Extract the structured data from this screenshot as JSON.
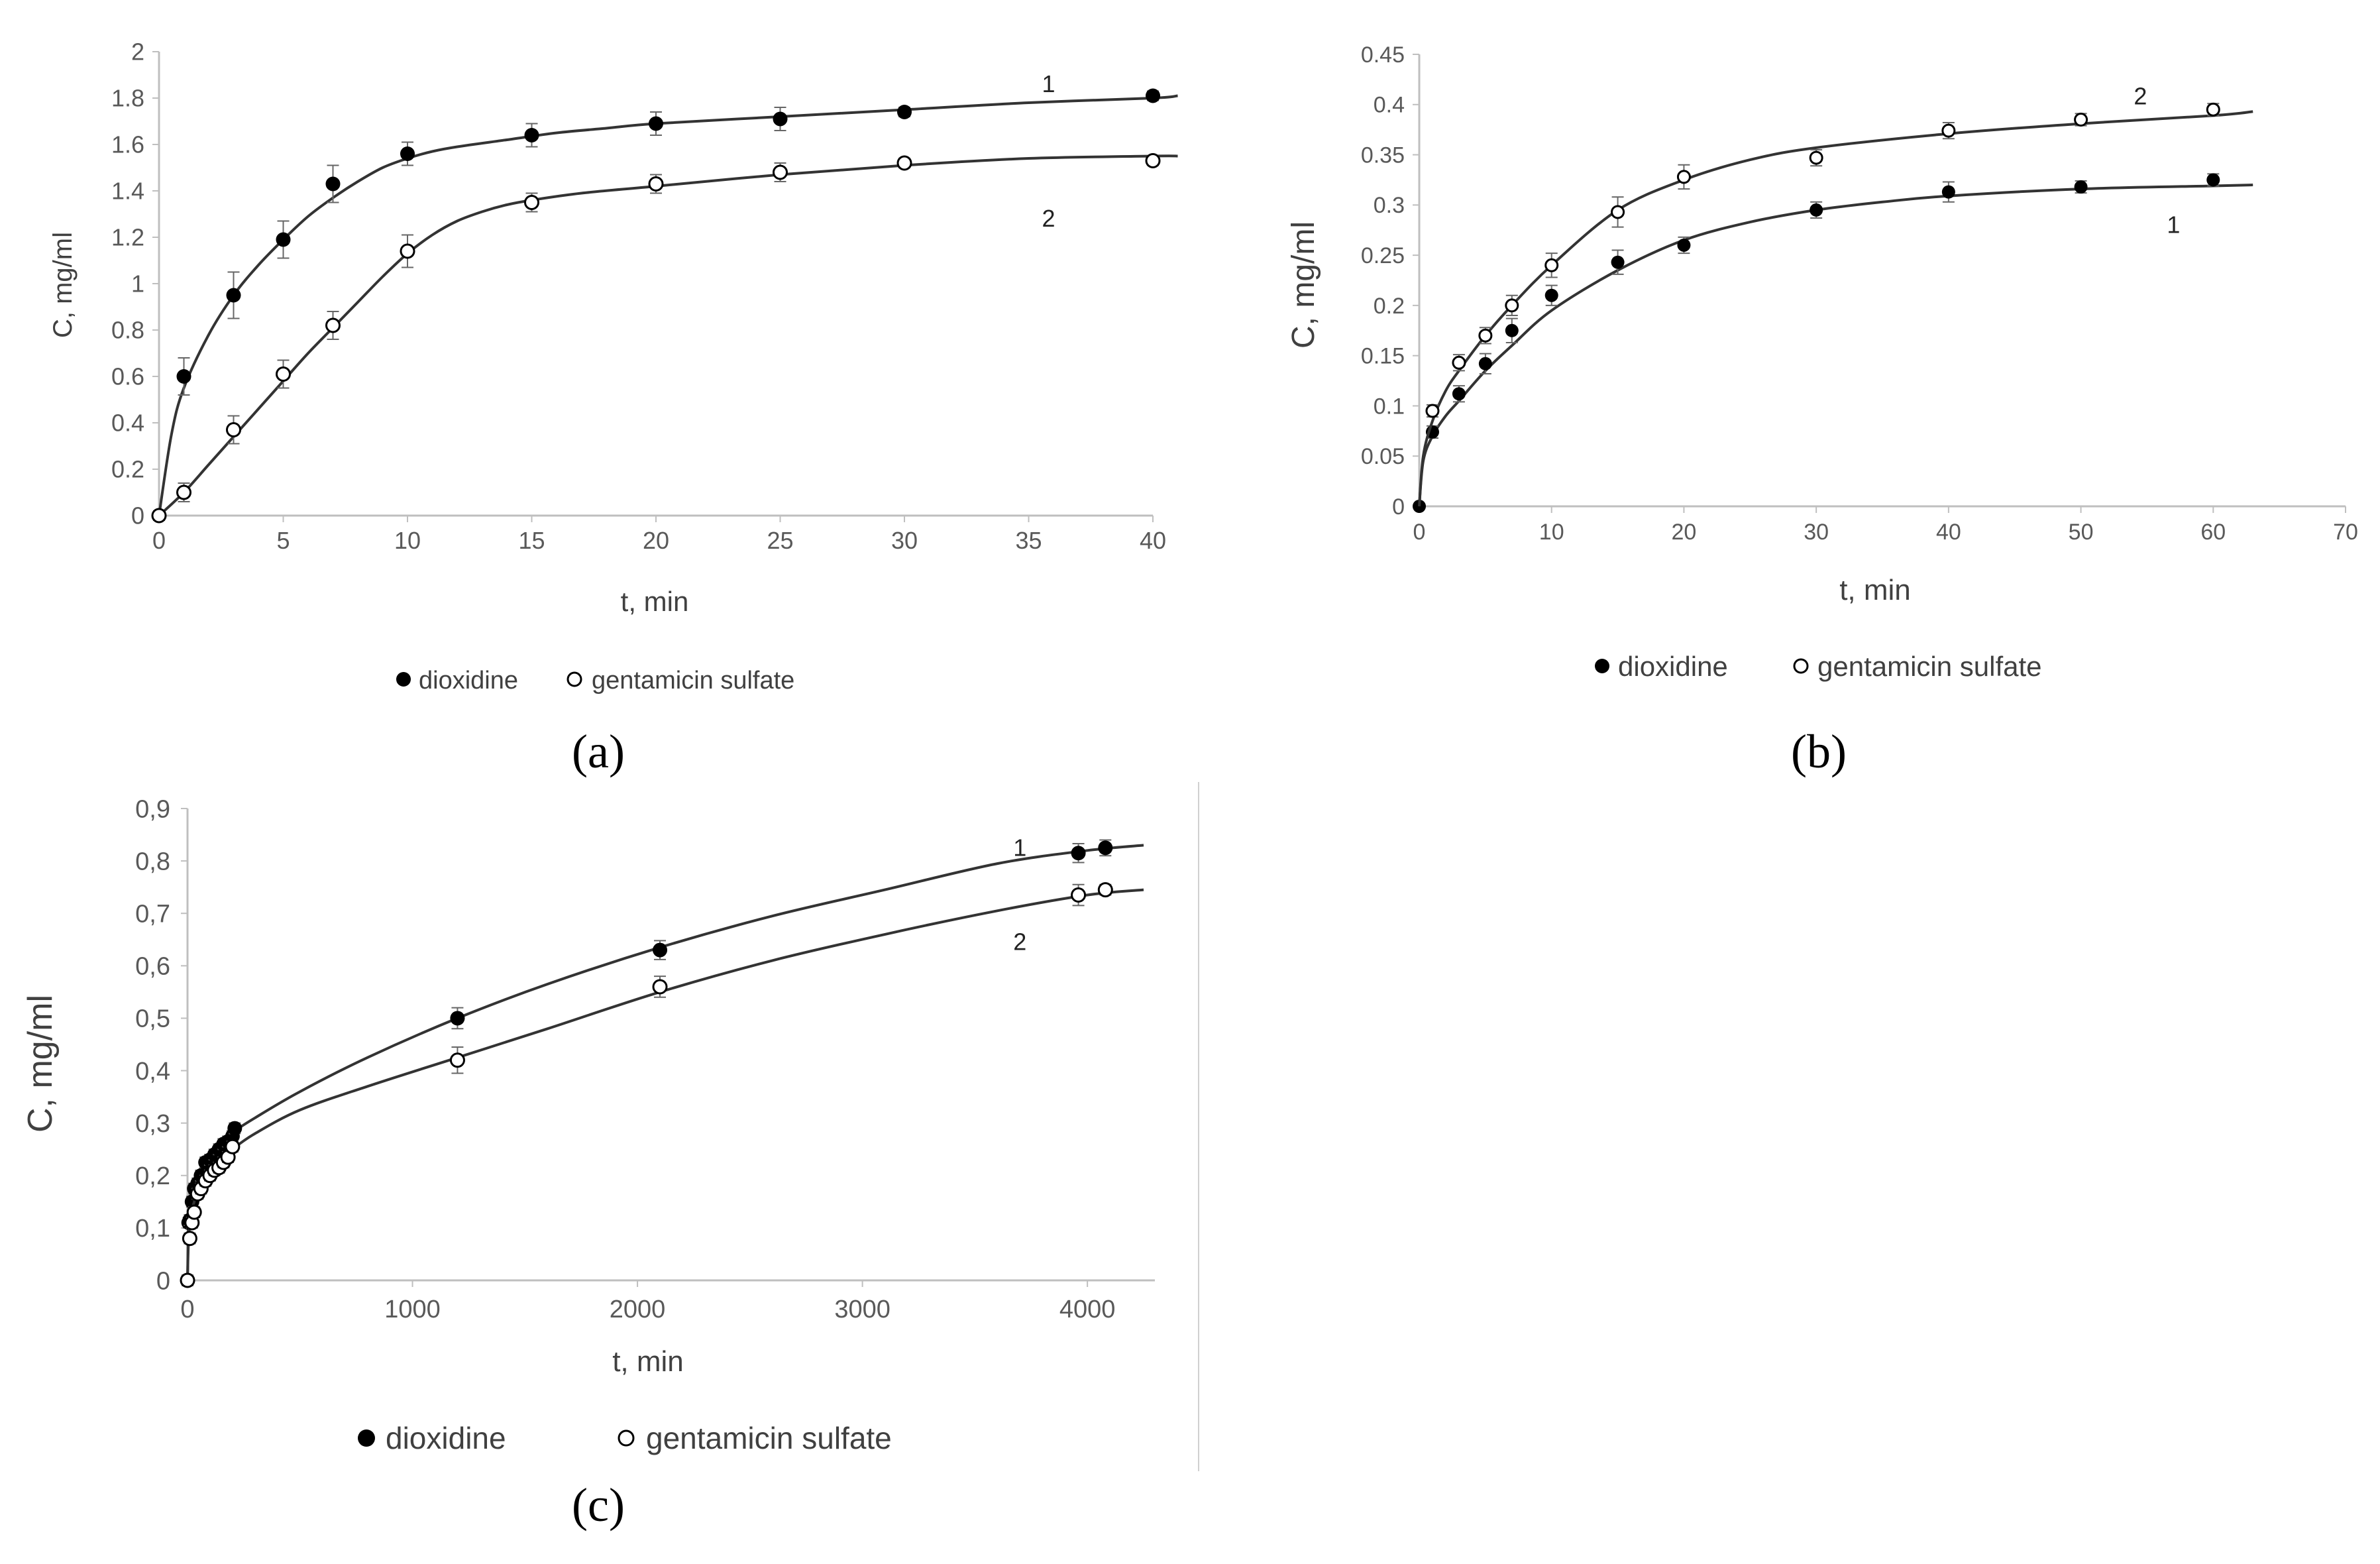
{
  "figure": {
    "colors": {
      "axis": "#bfbfbf",
      "curve": "#333333",
      "marker": "#000000",
      "text": "#404040",
      "tick": "#595959"
    }
  },
  "chart_data": [
    {
      "id": "a",
      "type": "scatter",
      "panel_label": "(a)",
      "xlabel": "t, min",
      "ylabel": "C, mg/ml",
      "xlim": [
        0,
        40
      ],
      "ylim": [
        0,
        2
      ],
      "xticks": [
        "0",
        "5",
        "10",
        "15",
        "20",
        "25",
        "30",
        "35",
        "40"
      ],
      "yticks": [
        "0",
        "0.2",
        "0.4",
        "0.6",
        "0.8",
        "1",
        "1.2",
        "1.4",
        "1.6",
        "1.8",
        "2"
      ],
      "xtick_values": [
        0,
        5,
        10,
        15,
        20,
        25,
        30,
        35,
        40
      ],
      "ytick_values": [
        0,
        0.2,
        0.4,
        0.6,
        0.8,
        1,
        1.2,
        1.4,
        1.6,
        1.8,
        2
      ],
      "legend_position": "bottom",
      "series": [
        {
          "name": "dioxidine",
          "marker": "filled",
          "curve_label": "1",
          "x": [
            0,
            1,
            3,
            5,
            7,
            10,
            15,
            20,
            25,
            30,
            40
          ],
          "y": [
            0,
            0.6,
            0.95,
            1.19,
            1.43,
            1.56,
            1.64,
            1.69,
            1.71,
            1.74,
            1.81
          ],
          "err": [
            0.02,
            0.08,
            0.1,
            0.08,
            0.08,
            0.05,
            0.05,
            0.05,
            0.05,
            0.02,
            0.02
          ],
          "fit_x": [
            0,
            0.5,
            1,
            2,
            3,
            4,
            5,
            6,
            7,
            8,
            9,
            10,
            11,
            12,
            14,
            16,
            18,
            20,
            25,
            30,
            35,
            40,
            41
          ],
          "fit_y": [
            0,
            0.35,
            0.55,
            0.78,
            0.95,
            1.08,
            1.19,
            1.29,
            1.37,
            1.44,
            1.5,
            1.54,
            1.57,
            1.59,
            1.62,
            1.65,
            1.67,
            1.69,
            1.72,
            1.75,
            1.78,
            1.8,
            1.81
          ],
          "curve_label_at": [
            35.8,
            1.86
          ]
        },
        {
          "name": "gentamicin sulfate",
          "marker": "open",
          "curve_label": "2",
          "x": [
            0,
            1,
            3,
            5,
            7,
            10,
            15,
            20,
            25,
            30,
            40
          ],
          "y": [
            0,
            0.1,
            0.37,
            0.61,
            0.82,
            1.14,
            1.35,
            1.43,
            1.48,
            1.52,
            1.53
          ],
          "err": [
            0.01,
            0.04,
            0.06,
            0.06,
            0.06,
            0.07,
            0.04,
            0.04,
            0.04,
            0.02,
            0.02
          ],
          "fit_x": [
            0,
            1,
            2,
            3,
            4,
            5,
            6,
            7,
            8,
            9,
            10,
            11,
            12,
            13,
            14,
            15,
            17,
            20,
            25,
            30,
            35,
            40,
            41
          ],
          "fit_y": [
            0,
            0.1,
            0.22,
            0.34,
            0.46,
            0.58,
            0.7,
            0.81,
            0.92,
            1.03,
            1.13,
            1.21,
            1.27,
            1.31,
            1.34,
            1.36,
            1.39,
            1.42,
            1.47,
            1.51,
            1.54,
            1.55,
            1.55
          ],
          "curve_label_at": [
            35.8,
            1.28
          ]
        }
      ]
    },
    {
      "id": "b",
      "type": "scatter",
      "panel_label": "(b)",
      "xlabel": "t, min",
      "ylabel": "C, mg/ml",
      "xlim": [
        0,
        70
      ],
      "ylim": [
        0,
        0.45
      ],
      "xticks": [
        "0",
        "10",
        "20",
        "30",
        "40",
        "50",
        "60",
        "70"
      ],
      "yticks": [
        "0",
        "0.05",
        "0.1",
        "0.15",
        "0.2",
        "0.25",
        "0.3",
        "0.35",
        "0.4",
        "0.45"
      ],
      "xtick_values": [
        0,
        10,
        20,
        30,
        40,
        50,
        60,
        70
      ],
      "ytick_values": [
        0,
        0.05,
        0.1,
        0.15,
        0.2,
        0.25,
        0.3,
        0.35,
        0.4,
        0.45
      ],
      "legend_position": "bottom",
      "series": [
        {
          "name": "dioxidine",
          "marker": "filled",
          "curve_label": "1",
          "x": [
            0,
            1,
            3,
            5,
            7,
            10,
            15,
            20,
            30,
            40,
            50,
            60
          ],
          "y": [
            0,
            0.074,
            0.112,
            0.142,
            0.175,
            0.21,
            0.243,
            0.26,
            0.295,
            0.313,
            0.318,
            0.325
          ],
          "err": [
            0.002,
            0.006,
            0.008,
            0.01,
            0.012,
            0.01,
            0.012,
            0.008,
            0.008,
            0.01,
            0.006,
            0.006
          ],
          "fit_x": [
            0,
            0.3,
            1,
            2,
            3,
            5,
            7,
            10,
            15,
            20,
            25,
            30,
            35,
            40,
            50,
            60,
            63
          ],
          "fit_y": [
            0,
            0.045,
            0.07,
            0.09,
            0.105,
            0.135,
            0.16,
            0.195,
            0.235,
            0.265,
            0.283,
            0.295,
            0.303,
            0.309,
            0.316,
            0.319,
            0.32
          ],
          "curve_label_at": [
            57,
            0.28
          ]
        },
        {
          "name": "gentamicin sulfate",
          "marker": "open",
          "curve_label": "2",
          "x": [
            1,
            3,
            5,
            7,
            10,
            15,
            20,
            30,
            40,
            50,
            60
          ],
          "y": [
            0.095,
            0.143,
            0.17,
            0.2,
            0.24,
            0.293,
            0.328,
            0.347,
            0.374,
            0.385,
            0.395
          ],
          "err": [
            0.006,
            0.008,
            0.008,
            0.01,
            0.012,
            0.015,
            0.012,
            0.008,
            0.008,
            0.006,
            0.006
          ],
          "fit_x": [
            0,
            0.3,
            1,
            2,
            3,
            5,
            7,
            10,
            15,
            20,
            25,
            30,
            40,
            50,
            60,
            63
          ],
          "fit_y": [
            0,
            0.05,
            0.085,
            0.115,
            0.135,
            0.17,
            0.2,
            0.24,
            0.295,
            0.325,
            0.345,
            0.357,
            0.371,
            0.381,
            0.389,
            0.393
          ],
          "curve_label_at": [
            54.5,
            0.408
          ]
        }
      ]
    },
    {
      "id": "c",
      "type": "scatter",
      "panel_label": "(c)",
      "xlabel": "t, min",
      "ylabel": "C, mg/ml",
      "xlim": [
        0,
        4300
      ],
      "ylim": [
        0,
        0.9
      ],
      "xticks": [
        "0",
        "1000",
        "2000",
        "3000",
        "4000"
      ],
      "yticks": [
        "0",
        "0,1",
        "0,2",
        "0,3",
        "0,4",
        "0,5",
        "0,6",
        "0,7",
        "0,8",
        "0,9"
      ],
      "xtick_values": [
        0,
        1000,
        2000,
        3000,
        4000
      ],
      "ytick_values": [
        0,
        0.1,
        0.2,
        0.3,
        0.4,
        0.5,
        0.6,
        0.7,
        0.8,
        0.9
      ],
      "legend_position": "bottom",
      "series": [
        {
          "name": "dioxidine",
          "marker": "filled",
          "curve_label": "1",
          "x": [
            5,
            10,
            20,
            30,
            45,
            60,
            80,
            100,
            120,
            140,
            160,
            180,
            200,
            210,
            1200,
            2100,
            3960,
            4080
          ],
          "y": [
            0.11,
            0.115,
            0.15,
            0.175,
            0.185,
            0.2,
            0.225,
            0.23,
            0.24,
            0.25,
            0.26,
            0.265,
            0.275,
            0.29,
            0.5,
            0.63,
            0.815,
            0.825
          ],
          "err": [
            0.01,
            0.01,
            0.01,
            0.01,
            0.01,
            0.01,
            0.01,
            0.01,
            0.01,
            0.01,
            0.01,
            0.01,
            0.01,
            0.01,
            0.02,
            0.018,
            0.018,
            0.015
          ],
          "fit_x": [
            0,
            5,
            15,
            30,
            60,
            100,
            150,
            200,
            300,
            500,
            800,
            1200,
            1600,
            2100,
            2600,
            3100,
            3600,
            4000,
            4250
          ],
          "fit_y": [
            0,
            0.12,
            0.165,
            0.19,
            0.215,
            0.24,
            0.262,
            0.282,
            0.31,
            0.36,
            0.425,
            0.5,
            0.565,
            0.635,
            0.695,
            0.745,
            0.795,
            0.82,
            0.83
          ],
          "curve_label_at": [
            3700,
            0.825
          ]
        },
        {
          "name": "gentamicin sulfate",
          "marker": "open",
          "curve_label": "2",
          "x": [
            0,
            10,
            20,
            30,
            45,
            60,
            80,
            100,
            120,
            140,
            160,
            180,
            200,
            1200,
            2100,
            3960,
            4080
          ],
          "y": [
            0,
            0.08,
            0.11,
            0.13,
            0.165,
            0.175,
            0.19,
            0.2,
            0.21,
            0.215,
            0.225,
            0.235,
            0.255,
            0.42,
            0.56,
            0.735,
            0.745
          ],
          "err": [
            0.01,
            0.01,
            0.01,
            0.01,
            0.01,
            0.01,
            0.01,
            0.01,
            0.01,
            0.01,
            0.01,
            0.01,
            0.01,
            0.025,
            0.02,
            0.02,
            0.01
          ],
          "fit_x": [
            0,
            5,
            15,
            30,
            60,
            100,
            150,
            200,
            300,
            500,
            800,
            1200,
            1600,
            2100,
            2600,
            3100,
            3600,
            4000,
            4250
          ],
          "fit_y": [
            0,
            0.08,
            0.12,
            0.15,
            0.18,
            0.205,
            0.23,
            0.25,
            0.28,
            0.325,
            0.37,
            0.425,
            0.48,
            0.55,
            0.61,
            0.66,
            0.705,
            0.735,
            0.745
          ],
          "curve_label_at": [
            3700,
            0.645
          ]
        }
      ]
    }
  ]
}
